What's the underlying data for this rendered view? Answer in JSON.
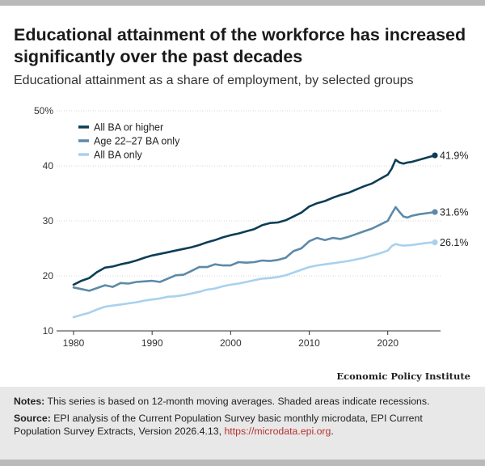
{
  "title": "Educational attainment of the workforce has increased significantly over the past decades",
  "subtitle": "Educational attainment as a share of employment, by selected groups",
  "credit": "Economic Policy Institute",
  "notes": {
    "label": "Notes:",
    "text": " This series is based on 12-month moving averages. Shaded areas indicate recessions."
  },
  "source": {
    "label": "Source:",
    "text": " EPI analysis of the Current Population Survey basic monthly microdata, EPI Current Population Survey Extracts, Version 2026.4.13, ",
    "link": "https://microdata.epi.org",
    "end": "."
  },
  "chart_data": {
    "type": "line",
    "xlabel": "",
    "ylabel": "",
    "xlim": [
      1979,
      2028
    ],
    "ylim": [
      10,
      50
    ],
    "x_ticks": [
      1980,
      1990,
      2000,
      2010,
      2020
    ],
    "y_ticks": [
      {
        "value": 10,
        "label": "10"
      },
      {
        "value": 20,
        "label": "20"
      },
      {
        "value": 30,
        "label": "30"
      },
      {
        "value": 40,
        "label": "40"
      },
      {
        "value": 50,
        "label": "50%"
      }
    ],
    "grid": true,
    "legend": "top-left",
    "series": [
      {
        "name": "All BA or higher",
        "color": "#0d3d56",
        "end_label": "41.9%",
        "points": [
          [
            1980,
            18.4
          ],
          [
            1981,
            19.1
          ],
          [
            1982,
            19.6
          ],
          [
            1983,
            20.7
          ],
          [
            1984,
            21.5
          ],
          [
            1985,
            21.7
          ],
          [
            1986,
            22.1
          ],
          [
            1987,
            22.4
          ],
          [
            1988,
            22.8
          ],
          [
            1989,
            23.3
          ],
          [
            1990,
            23.7
          ],
          [
            1991,
            24.0
          ],
          [
            1992,
            24.3
          ],
          [
            1993,
            24.6
          ],
          [
            1994,
            24.9
          ],
          [
            1995,
            25.2
          ],
          [
            1996,
            25.6
          ],
          [
            1997,
            26.1
          ],
          [
            1998,
            26.5
          ],
          [
            1999,
            27.0
          ],
          [
            2000,
            27.4
          ],
          [
            2001,
            27.7
          ],
          [
            2002,
            28.1
          ],
          [
            2003,
            28.5
          ],
          [
            2004,
            29.2
          ],
          [
            2005,
            29.6
          ],
          [
            2006,
            29.7
          ],
          [
            2007,
            30.1
          ],
          [
            2008,
            30.8
          ],
          [
            2009,
            31.5
          ],
          [
            2010,
            32.6
          ],
          [
            2011,
            33.2
          ],
          [
            2012,
            33.6
          ],
          [
            2013,
            34.2
          ],
          [
            2014,
            34.7
          ],
          [
            2015,
            35.1
          ],
          [
            2016,
            35.7
          ],
          [
            2017,
            36.3
          ],
          [
            2018,
            36.8
          ],
          [
            2019,
            37.6
          ],
          [
            2020,
            38.4
          ],
          [
            2020.5,
            39.5
          ],
          [
            2021,
            41.1
          ],
          [
            2021.5,
            40.6
          ],
          [
            2022,
            40.4
          ],
          [
            2022.5,
            40.6
          ],
          [
            2023,
            40.7
          ],
          [
            2024,
            41.1
          ],
          [
            2025,
            41.5
          ],
          [
            2026,
            41.9
          ]
        ]
      },
      {
        "name": "Age 22–27 BA only",
        "color": "#5d8aa8",
        "end_label": "31.6%",
        "points": [
          [
            1980,
            17.9
          ],
          [
            1981,
            17.6
          ],
          [
            1982,
            17.3
          ],
          [
            1983,
            17.8
          ],
          [
            1984,
            18.3
          ],
          [
            1985,
            18.0
          ],
          [
            1986,
            18.7
          ],
          [
            1987,
            18.6
          ],
          [
            1988,
            18.9
          ],
          [
            1989,
            19.0
          ],
          [
            1990,
            19.1
          ],
          [
            1991,
            18.9
          ],
          [
            1992,
            19.5
          ],
          [
            1993,
            20.1
          ],
          [
            1994,
            20.2
          ],
          [
            1995,
            20.9
          ],
          [
            1996,
            21.6
          ],
          [
            1997,
            21.6
          ],
          [
            1998,
            22.1
          ],
          [
            1999,
            21.9
          ],
          [
            2000,
            21.9
          ],
          [
            2001,
            22.5
          ],
          [
            2002,
            22.4
          ],
          [
            2003,
            22.5
          ],
          [
            2004,
            22.8
          ],
          [
            2005,
            22.7
          ],
          [
            2006,
            22.9
          ],
          [
            2007,
            23.3
          ],
          [
            2008,
            24.5
          ],
          [
            2009,
            25.0
          ],
          [
            2010,
            26.3
          ],
          [
            2011,
            26.9
          ],
          [
            2012,
            26.5
          ],
          [
            2013,
            26.9
          ],
          [
            2014,
            26.7
          ],
          [
            2015,
            27.1
          ],
          [
            2016,
            27.6
          ],
          [
            2017,
            28.1
          ],
          [
            2018,
            28.6
          ],
          [
            2019,
            29.3
          ],
          [
            2020,
            30.0
          ],
          [
            2020.5,
            31.3
          ],
          [
            2021,
            32.5
          ],
          [
            2021.5,
            31.6
          ],
          [
            2022,
            30.8
          ],
          [
            2022.5,
            30.6
          ],
          [
            2023,
            30.9
          ],
          [
            2024,
            31.2
          ],
          [
            2025,
            31.4
          ],
          [
            2026,
            31.6
          ]
        ]
      },
      {
        "name": "All BA only",
        "color": "#a8d1ee",
        "end_label": "26.1%",
        "points": [
          [
            1980,
            12.5
          ],
          [
            1981,
            12.9
          ],
          [
            1982,
            13.3
          ],
          [
            1983,
            13.9
          ],
          [
            1984,
            14.4
          ],
          [
            1985,
            14.6
          ],
          [
            1986,
            14.8
          ],
          [
            1987,
            15.0
          ],
          [
            1988,
            15.2
          ],
          [
            1989,
            15.5
          ],
          [
            1990,
            15.7
          ],
          [
            1991,
            15.9
          ],
          [
            1992,
            16.2
          ],
          [
            1993,
            16.3
          ],
          [
            1994,
            16.5
          ],
          [
            1995,
            16.8
          ],
          [
            1996,
            17.1
          ],
          [
            1997,
            17.5
          ],
          [
            1998,
            17.7
          ],
          [
            1999,
            18.1
          ],
          [
            2000,
            18.4
          ],
          [
            2001,
            18.6
          ],
          [
            2002,
            18.9
          ],
          [
            2003,
            19.2
          ],
          [
            2004,
            19.5
          ],
          [
            2005,
            19.6
          ],
          [
            2006,
            19.8
          ],
          [
            2007,
            20.1
          ],
          [
            2008,
            20.6
          ],
          [
            2009,
            21.1
          ],
          [
            2010,
            21.6
          ],
          [
            2011,
            21.9
          ],
          [
            2012,
            22.1
          ],
          [
            2013,
            22.3
          ],
          [
            2014,
            22.5
          ],
          [
            2015,
            22.7
          ],
          [
            2016,
            23.0
          ],
          [
            2017,
            23.3
          ],
          [
            2018,
            23.7
          ],
          [
            2019,
            24.1
          ],
          [
            2020,
            24.6
          ],
          [
            2020.5,
            25.4
          ],
          [
            2021,
            25.8
          ],
          [
            2021.5,
            25.6
          ],
          [
            2022,
            25.5
          ],
          [
            2023,
            25.6
          ],
          [
            2024,
            25.8
          ],
          [
            2025,
            26.0
          ],
          [
            2026,
            26.1
          ]
        ]
      }
    ]
  }
}
